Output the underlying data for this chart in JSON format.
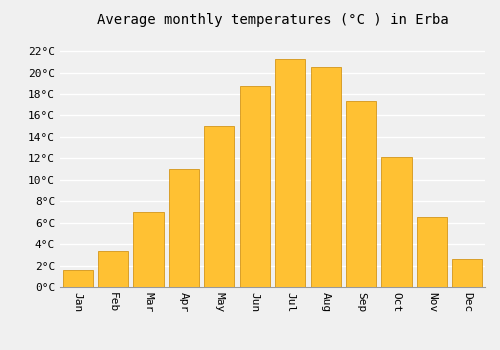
{
  "title": "Average monthly temperatures (°C ) in Erba",
  "months": [
    "Jan",
    "Feb",
    "Mar",
    "Apr",
    "May",
    "Jun",
    "Jul",
    "Aug",
    "Sep",
    "Oct",
    "Nov",
    "Dec"
  ],
  "values": [
    1.6,
    3.4,
    7.0,
    11.0,
    15.0,
    18.7,
    21.3,
    20.5,
    17.3,
    12.1,
    6.5,
    2.6
  ],
  "bar_color": "#FFC133",
  "bar_edge_color": "#CC8800",
  "background_color": "#F0F0F0",
  "plot_bg_color": "#F0F0F0",
  "grid_color": "#FFFFFF",
  "yticks": [
    0,
    2,
    4,
    6,
    8,
    10,
    12,
    14,
    16,
    18,
    20,
    22
  ],
  "ylim": [
    0,
    23.5
  ],
  "title_fontsize": 10,
  "tick_fontsize": 8,
  "font_family": "monospace",
  "bar_width": 0.85
}
